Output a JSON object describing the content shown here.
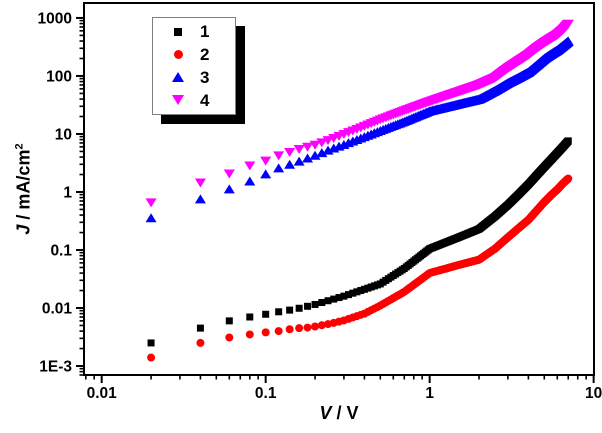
{
  "chart_data": {
    "type": "scatter",
    "title": "",
    "xlabel": {
      "symbol": "V",
      "unit": " / V"
    },
    "ylabel": {
      "symbol": "J",
      "unit": " / mA/cm",
      "sup": "2"
    },
    "x_axis": {
      "scale": "log",
      "min": 0.0078,
      "max": 10.05,
      "major_ticks": [
        0.01,
        0.1,
        1,
        10
      ],
      "tick_labels": [
        "0.01",
        "0.1",
        "1",
        "10"
      ]
    },
    "y_axis": {
      "scale": "log",
      "min": 0.0007,
      "max": 1810,
      "major_ticks": [
        1000,
        100,
        10,
        1,
        0.1,
        0.01,
        0.001
      ],
      "tick_labels": [
        "1000",
        "100",
        "10",
        "1",
        "0.1",
        "0.01",
        "1E-3"
      ]
    },
    "grid": false,
    "legend": {
      "position": "upper-left-inset",
      "entries": [
        "1",
        "2",
        "3",
        "4"
      ]
    },
    "v_sweep": {
      "start": 0.02,
      "step": 0.02,
      "end": 7.0
    },
    "series": [
      {
        "name": "1",
        "marker": "square",
        "color": "#000000",
        "anchors": [
          [
            0.02,
            0.0025
          ],
          [
            0.04,
            0.0045
          ],
          [
            0.06,
            0.006
          ],
          [
            0.08,
            0.007
          ],
          [
            0.1,
            0.0078
          ],
          [
            0.12,
            0.0086
          ],
          [
            0.14,
            0.0092
          ],
          [
            0.16,
            0.0099
          ],
          [
            0.18,
            0.0107
          ],
          [
            0.2,
            0.0115
          ],
          [
            0.25,
            0.0138
          ],
          [
            0.3,
            0.016
          ],
          [
            0.4,
            0.021
          ],
          [
            0.5,
            0.026
          ],
          [
            0.7,
            0.048
          ],
          [
            1.0,
            0.105
          ],
          [
            1.5,
            0.165
          ],
          [
            2.0,
            0.23
          ],
          [
            2.5,
            0.38
          ],
          [
            3.0,
            0.6
          ],
          [
            3.5,
            0.92
          ],
          [
            4.0,
            1.35
          ],
          [
            4.5,
            1.95
          ],
          [
            5.0,
            2.7
          ],
          [
            5.5,
            3.6
          ],
          [
            6.0,
            4.7
          ],
          [
            6.5,
            6.0
          ],
          [
            7.0,
            7.6
          ]
        ]
      },
      {
        "name": "2",
        "marker": "circle",
        "color": "#FF0000",
        "anchors": [
          [
            0.02,
            0.0014
          ],
          [
            0.04,
            0.0025
          ],
          [
            0.06,
            0.0031
          ],
          [
            0.08,
            0.0035
          ],
          [
            0.1,
            0.0038
          ],
          [
            0.12,
            0.004
          ],
          [
            0.14,
            0.0043
          ],
          [
            0.16,
            0.0045
          ],
          [
            0.18,
            0.0046
          ],
          [
            0.2,
            0.0048
          ],
          [
            0.25,
            0.0054
          ],
          [
            0.3,
            0.0061
          ],
          [
            0.4,
            0.008
          ],
          [
            0.5,
            0.011
          ],
          [
            0.7,
            0.019
          ],
          [
            1.0,
            0.04
          ],
          [
            1.5,
            0.055
          ],
          [
            2.0,
            0.068
          ],
          [
            2.5,
            0.105
          ],
          [
            3.0,
            0.165
          ],
          [
            3.5,
            0.24
          ],
          [
            4.0,
            0.33
          ],
          [
            4.5,
            0.48
          ],
          [
            5.0,
            0.67
          ],
          [
            5.5,
            0.88
          ],
          [
            6.0,
            1.1
          ],
          [
            6.5,
            1.4
          ],
          [
            7.0,
            1.7
          ]
        ]
      },
      {
        "name": "3",
        "marker": "triangle-up",
        "color": "#0000FF",
        "anchors": [
          [
            0.02,
            0.36
          ],
          [
            0.04,
            0.76
          ],
          [
            0.06,
            1.13
          ],
          [
            0.08,
            1.55
          ],
          [
            0.1,
            2.05
          ],
          [
            0.12,
            2.6
          ],
          [
            0.14,
            3.0
          ],
          [
            0.16,
            3.4
          ],
          [
            0.18,
            3.85
          ],
          [
            0.2,
            4.3
          ],
          [
            0.25,
            5.5
          ],
          [
            0.3,
            6.6
          ],
          [
            0.4,
            9.0
          ],
          [
            0.5,
            11.5
          ],
          [
            0.7,
            16.5
          ],
          [
            1.0,
            25
          ],
          [
            1.5,
            33
          ],
          [
            2.0,
            40
          ],
          [
            2.5,
            56
          ],
          [
            3.0,
            76
          ],
          [
            3.5,
            95
          ],
          [
            4.0,
            117
          ],
          [
            4.5,
            155
          ],
          [
            5.0,
            200
          ],
          [
            5.5,
            240
          ],
          [
            6.0,
            280
          ],
          [
            6.5,
            335
          ],
          [
            7.0,
            400
          ]
        ]
      },
      {
        "name": "4",
        "marker": "triangle-down",
        "color": "#FF00FF",
        "anchors": [
          [
            0.02,
            0.65
          ],
          [
            0.04,
            1.43
          ],
          [
            0.06,
            2.04
          ],
          [
            0.08,
            2.8
          ],
          [
            0.1,
            3.4
          ],
          [
            0.12,
            4.2
          ],
          [
            0.14,
            4.8
          ],
          [
            0.16,
            5.4
          ],
          [
            0.18,
            5.9
          ],
          [
            0.2,
            6.4
          ],
          [
            0.25,
            8.0
          ],
          [
            0.3,
            9.8
          ],
          [
            0.4,
            13.5
          ],
          [
            0.5,
            17.5
          ],
          [
            0.7,
            25
          ],
          [
            1.0,
            36
          ],
          [
            1.5,
            53
          ],
          [
            2.0,
            70
          ],
          [
            2.5,
            92
          ],
          [
            3.0,
            135
          ],
          [
            3.5,
            180
          ],
          [
            4.0,
            230
          ],
          [
            4.5,
            300
          ],
          [
            5.0,
            370
          ],
          [
            5.5,
            440
          ],
          [
            6.0,
            510
          ],
          [
            6.5,
            620
          ],
          [
            7.0,
            780
          ]
        ]
      }
    ],
    "colors": {
      "frame": "#000000",
      "background": "#FFFFFF",
      "legend_border": "#808080",
      "legend_shadow": "#000000"
    }
  }
}
